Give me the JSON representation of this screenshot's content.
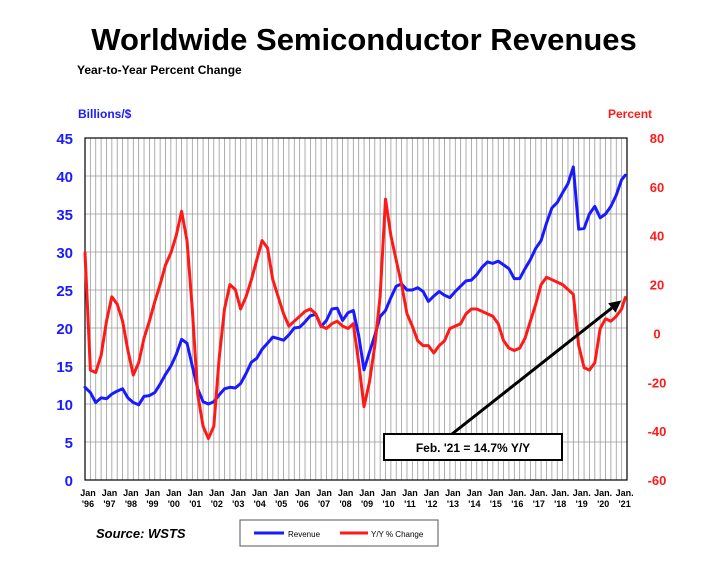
{
  "chart_data": {
    "type": "line",
    "title": "Worldwide Semiconductor Revenues",
    "subtitle": "Year-to-Year Percent Change",
    "y_left_label": "Billions/$",
    "y_right_label": "Percent",
    "y_left_lim": [
      0,
      45
    ],
    "y_left_ticks": [
      "0",
      "5",
      "10",
      "15",
      "20",
      "25",
      "30",
      "35",
      "40",
      "45"
    ],
    "y_right_lim": [
      -60,
      80
    ],
    "y_right_ticks": [
      "-60",
      "-40",
      "-20",
      "0",
      "20",
      "40",
      "60",
      "80"
    ],
    "x_lim": [
      1996.0,
      2021.25
    ],
    "x_tick_years": [
      "'96",
      "'97",
      "'98",
      "'99",
      "'00",
      "'01",
      "'02",
      "'03",
      "'04",
      "'05",
      "'06",
      "'07",
      "'08",
      "'09",
      "'10",
      "'11",
      "'12",
      "'13",
      "'14",
      "'15",
      "'16",
      "'17",
      "'18",
      "'19",
      "'20",
      "'21"
    ],
    "x_tick_months": [
      "Jan",
      "Jan",
      "Jan",
      "Jan",
      "Jan",
      "Jan",
      "Jan",
      "Jan",
      "Jan",
      "Jan",
      "Jan",
      "Jan",
      "Jan",
      "Jan",
      "Jan",
      "Jan",
      "Jan",
      "Jan",
      "Jan",
      "Jan",
      "Jan.",
      "Jan.",
      "Jan.",
      "Jan.",
      "Jan.",
      "Jan."
    ],
    "grid": true,
    "legend_position": "bottom-center",
    "annotation": "Feb. '21 = 14.7% Y/Y",
    "series": [
      {
        "name": "Revenue",
        "axis": "left",
        "color": "#1a1aff",
        "points": [
          [
            1996.0,
            12.2
          ],
          [
            1996.25,
            11.5
          ],
          [
            1996.5,
            10.2
          ],
          [
            1996.75,
            10.8
          ],
          [
            1997.0,
            10.7
          ],
          [
            1997.25,
            11.3
          ],
          [
            1997.5,
            11.7
          ],
          [
            1997.75,
            12.0
          ],
          [
            1998.0,
            10.8
          ],
          [
            1998.25,
            10.2
          ],
          [
            1998.5,
            9.9
          ],
          [
            1998.75,
            11.0
          ],
          [
            1999.0,
            11.1
          ],
          [
            1999.25,
            11.5
          ],
          [
            1999.5,
            12.6
          ],
          [
            1999.75,
            13.9
          ],
          [
            2000.0,
            15.0
          ],
          [
            2000.25,
            16.5
          ],
          [
            2000.5,
            18.5
          ],
          [
            2000.75,
            18.0
          ],
          [
            2001.0,
            15.0
          ],
          [
            2001.25,
            12.0
          ],
          [
            2001.5,
            10.3
          ],
          [
            2001.75,
            10.0
          ],
          [
            2002.0,
            10.3
          ],
          [
            2002.25,
            11.2
          ],
          [
            2002.5,
            12.0
          ],
          [
            2002.75,
            12.2
          ],
          [
            2003.0,
            12.1
          ],
          [
            2003.25,
            12.7
          ],
          [
            2003.5,
            14.0
          ],
          [
            2003.75,
            15.5
          ],
          [
            2004.0,
            16.0
          ],
          [
            2004.25,
            17.2
          ],
          [
            2004.5,
            18.0
          ],
          [
            2004.75,
            18.8
          ],
          [
            2005.0,
            18.6
          ],
          [
            2005.25,
            18.4
          ],
          [
            2005.5,
            19.1
          ],
          [
            2005.75,
            20.0
          ],
          [
            2006.0,
            20.1
          ],
          [
            2006.25,
            20.8
          ],
          [
            2006.5,
            21.6
          ],
          [
            2006.75,
            21.8
          ],
          [
            2007.0,
            20.2
          ],
          [
            2007.25,
            21.0
          ],
          [
            2007.5,
            22.5
          ],
          [
            2007.75,
            22.6
          ],
          [
            2008.0,
            21.0
          ],
          [
            2008.25,
            22.0
          ],
          [
            2008.5,
            22.3
          ],
          [
            2008.75,
            19.0
          ],
          [
            2009.0,
            14.5
          ],
          [
            2009.25,
            16.8
          ],
          [
            2009.5,
            19.0
          ],
          [
            2009.75,
            21.5
          ],
          [
            2010.0,
            22.3
          ],
          [
            2010.25,
            24.0
          ],
          [
            2010.5,
            25.5
          ],
          [
            2010.75,
            25.8
          ],
          [
            2011.0,
            25.0
          ],
          [
            2011.25,
            25.0
          ],
          [
            2011.5,
            25.3
          ],
          [
            2011.75,
            24.8
          ],
          [
            2012.0,
            23.5
          ],
          [
            2012.25,
            24.2
          ],
          [
            2012.5,
            24.8
          ],
          [
            2012.75,
            24.3
          ],
          [
            2013.0,
            24.0
          ],
          [
            2013.25,
            24.8
          ],
          [
            2013.5,
            25.5
          ],
          [
            2013.75,
            26.2
          ],
          [
            2014.0,
            26.3
          ],
          [
            2014.25,
            27.0
          ],
          [
            2014.5,
            28.0
          ],
          [
            2014.75,
            28.7
          ],
          [
            2015.0,
            28.5
          ],
          [
            2015.25,
            28.8
          ],
          [
            2015.5,
            28.3
          ],
          [
            2015.75,
            27.8
          ],
          [
            2016.0,
            26.5
          ],
          [
            2016.25,
            26.5
          ],
          [
            2016.5,
            27.8
          ],
          [
            2016.75,
            29.0
          ],
          [
            2017.0,
            30.5
          ],
          [
            2017.25,
            31.5
          ],
          [
            2017.5,
            33.8
          ],
          [
            2017.75,
            35.8
          ],
          [
            2018.0,
            36.5
          ],
          [
            2018.25,
            37.8
          ],
          [
            2018.5,
            39.0
          ],
          [
            2018.75,
            41.2
          ],
          [
            2019.0,
            33.0
          ],
          [
            2019.25,
            33.1
          ],
          [
            2019.5,
            35.0
          ],
          [
            2019.75,
            36.0
          ],
          [
            2020.0,
            34.5
          ],
          [
            2020.25,
            35.0
          ],
          [
            2020.5,
            36.0
          ],
          [
            2020.75,
            37.5
          ],
          [
            2021.0,
            39.5
          ],
          [
            2021.17,
            40.1
          ]
        ]
      },
      {
        "name": "Y/Y % Change",
        "axis": "right",
        "color": "#ff1a1a",
        "points": [
          [
            1996.0,
            33
          ],
          [
            1996.25,
            -15
          ],
          [
            1996.5,
            -16
          ],
          [
            1996.75,
            -9
          ],
          [
            1997.0,
            5
          ],
          [
            1997.25,
            15
          ],
          [
            1997.5,
            12
          ],
          [
            1997.75,
            5
          ],
          [
            1998.0,
            -7
          ],
          [
            1998.25,
            -17
          ],
          [
            1998.5,
            -12
          ],
          [
            1998.75,
            -2
          ],
          [
            1999.0,
            5
          ],
          [
            1999.25,
            13
          ],
          [
            1999.5,
            20
          ],
          [
            1999.75,
            28
          ],
          [
            2000.0,
            33
          ],
          [
            2000.25,
            40
          ],
          [
            2000.5,
            50
          ],
          [
            2000.75,
            38
          ],
          [
            2001.0,
            10
          ],
          [
            2001.25,
            -25
          ],
          [
            2001.5,
            -38
          ],
          [
            2001.75,
            -43
          ],
          [
            2002.0,
            -38
          ],
          [
            2002.25,
            -10
          ],
          [
            2002.5,
            10
          ],
          [
            2002.75,
            20
          ],
          [
            2003.0,
            18
          ],
          [
            2003.25,
            10
          ],
          [
            2003.5,
            15
          ],
          [
            2003.75,
            22
          ],
          [
            2004.0,
            30
          ],
          [
            2004.25,
            38
          ],
          [
            2004.5,
            35
          ],
          [
            2004.75,
            22
          ],
          [
            2005.0,
            15
          ],
          [
            2005.25,
            8
          ],
          [
            2005.5,
            3
          ],
          [
            2005.75,
            5
          ],
          [
            2006.0,
            7
          ],
          [
            2006.25,
            9
          ],
          [
            2006.5,
            10
          ],
          [
            2006.75,
            8
          ],
          [
            2007.0,
            3
          ],
          [
            2007.25,
            2
          ],
          [
            2007.5,
            4
          ],
          [
            2007.75,
            5
          ],
          [
            2008.0,
            3
          ],
          [
            2008.25,
            2
          ],
          [
            2008.5,
            4
          ],
          [
            2008.75,
            -12
          ],
          [
            2009.0,
            -30
          ],
          [
            2009.25,
            -20
          ],
          [
            2009.5,
            -5
          ],
          [
            2009.75,
            15
          ],
          [
            2010.0,
            55
          ],
          [
            2010.25,
            40
          ],
          [
            2010.5,
            30
          ],
          [
            2010.75,
            20
          ],
          [
            2011.0,
            8
          ],
          [
            2011.25,
            3
          ],
          [
            2011.5,
            -3
          ],
          [
            2011.75,
            -5
          ],
          [
            2012.0,
            -5
          ],
          [
            2012.25,
            -8
          ],
          [
            2012.5,
            -5
          ],
          [
            2012.75,
            -3
          ],
          [
            2013.0,
            2
          ],
          [
            2013.25,
            3
          ],
          [
            2013.5,
            4
          ],
          [
            2013.75,
            8
          ],
          [
            2014.0,
            10
          ],
          [
            2014.25,
            10
          ],
          [
            2014.5,
            9
          ],
          [
            2014.75,
            8
          ],
          [
            2015.0,
            7
          ],
          [
            2015.25,
            4
          ],
          [
            2015.5,
            -3
          ],
          [
            2015.75,
            -6
          ],
          [
            2016.0,
            -7
          ],
          [
            2016.25,
            -6
          ],
          [
            2016.5,
            -2
          ],
          [
            2016.75,
            5
          ],
          [
            2017.0,
            12
          ],
          [
            2017.25,
            20
          ],
          [
            2017.5,
            23
          ],
          [
            2017.75,
            22
          ],
          [
            2018.0,
            21
          ],
          [
            2018.25,
            20
          ],
          [
            2018.5,
            18
          ],
          [
            2018.75,
            16
          ],
          [
            2019.0,
            -5
          ],
          [
            2019.25,
            -14
          ],
          [
            2019.5,
            -15
          ],
          [
            2019.75,
            -12
          ],
          [
            2020.0,
            2
          ],
          [
            2020.25,
            6
          ],
          [
            2020.5,
            5
          ],
          [
            2020.75,
            7
          ],
          [
            2021.0,
            10
          ],
          [
            2021.17,
            14.7
          ]
        ]
      }
    ]
  }
}
